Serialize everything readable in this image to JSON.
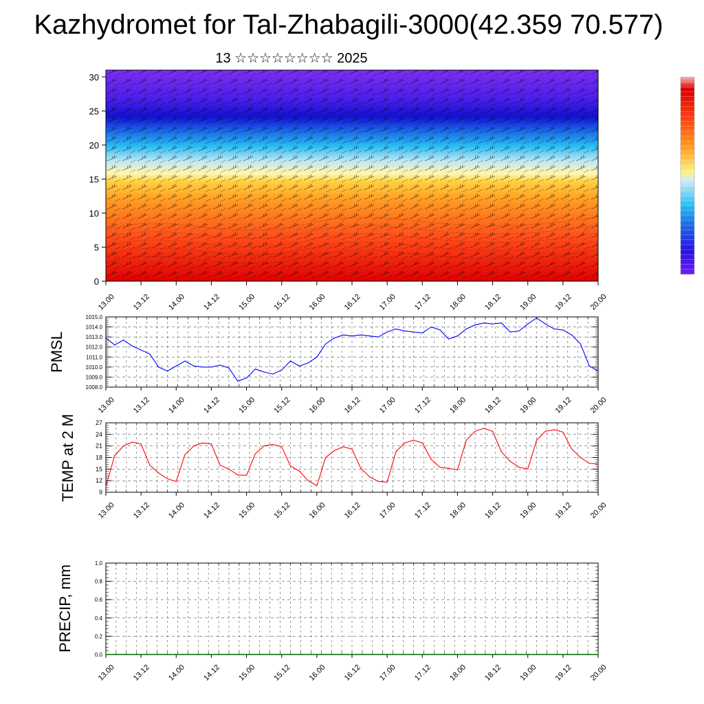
{
  "header": {
    "title": "Kazhydromet for Tal-Zhabagili-3000(42.359 70.577)",
    "subtitle": "13 ☆☆☆☆☆☆☆☆ 2025"
  },
  "chart_data": [
    {
      "type": "heatmap",
      "title": "",
      "xlabel": "",
      "ylabel": "",
      "x_ticks": [
        "13.00",
        "13.12",
        "14.00",
        "14.12",
        "15.00",
        "15.12",
        "16.00",
        "16.12",
        "17.00",
        "17.12",
        "18.00",
        "18.12",
        "19.00",
        "19.12",
        "20.00"
      ],
      "y_ticks": [
        0,
        5,
        10,
        15,
        20,
        25,
        30
      ],
      "ylim": [
        0,
        31
      ],
      "colormap": "rainbow (red at bottom, yellow ~15-16, light blue ~18, blue ~24, violet top)",
      "colorbar_position": "right",
      "overlay": "wind barbs"
    },
    {
      "type": "line",
      "ylabel": "PMSL",
      "color": "#0000ff",
      "ylim": [
        1008.0,
        1015.0
      ],
      "y_ticks": [
        "1008.0",
        "1009.0",
        "1010.0",
        "1011.0",
        "1012.0",
        "1013.0",
        "1014.0",
        "1015.0"
      ],
      "x_ticks": [
        "13.00",
        "13.12",
        "14.00",
        "14.12",
        "15.00",
        "15.12",
        "16.00",
        "16.12",
        "17.00",
        "17.12",
        "18.00",
        "18.12",
        "19.00",
        "19.12",
        "20.00"
      ],
      "x": [
        0,
        3,
        6,
        9,
        12,
        15,
        18,
        21,
        24,
        27,
        30,
        33,
        36,
        39,
        42,
        45,
        48,
        51,
        54,
        57,
        60,
        63,
        66,
        69,
        72,
        75,
        78,
        81,
        84,
        87,
        90,
        93,
        96,
        99,
        102,
        105,
        108,
        111,
        114,
        117,
        120,
        123,
        126,
        129,
        132,
        135,
        138,
        141,
        144,
        147,
        150,
        153,
        156,
        159,
        162,
        165,
        168
      ],
      "values": [
        1012.9,
        1012.2,
        1012.7,
        1012.1,
        1011.7,
        1011.3,
        1010.0,
        1009.6,
        1010.1,
        1010.6,
        1010.1,
        1010.0,
        1010.0,
        1010.2,
        1009.9,
        1008.6,
        1008.9,
        1009.8,
        1009.5,
        1009.3,
        1009.7,
        1010.6,
        1010.1,
        1010.4,
        1011.0,
        1012.3,
        1012.9,
        1013.2,
        1013.1,
        1013.2,
        1013.1,
        1013.0,
        1013.5,
        1013.8,
        1013.6,
        1013.5,
        1013.4,
        1014.0,
        1013.7,
        1012.8,
        1013.1,
        1013.8,
        1014.2,
        1014.4,
        1014.3,
        1014.4,
        1013.5,
        1013.6,
        1014.3,
        1014.9,
        1014.3,
        1013.8,
        1013.7,
        1013.2,
        1012.3,
        1010.1,
        1009.6
      ],
      "grid": true
    },
    {
      "type": "line",
      "ylabel": "TEMP at 2 M",
      "color": "#ff0000",
      "ylim": [
        9,
        27
      ],
      "y_ticks": [
        "9",
        "12",
        "15",
        "18",
        "21",
        "24",
        "27"
      ],
      "x_ticks": [
        "13.00",
        "13.12",
        "14.00",
        "14.12",
        "15.00",
        "15.12",
        "16.00",
        "16.12",
        "17.00",
        "17.12",
        "18.00",
        "18.12",
        "19.00",
        "19.12",
        "20.00"
      ],
      "x": [
        0,
        3,
        6,
        9,
        12,
        15,
        18,
        21,
        24,
        27,
        30,
        33,
        36,
        39,
        42,
        45,
        48,
        51,
        54,
        57,
        60,
        63,
        66,
        69,
        72,
        75,
        78,
        81,
        84,
        87,
        90,
        93,
        96,
        99,
        102,
        105,
        108,
        111,
        114,
        117,
        120,
        123,
        126,
        129,
        132,
        135,
        138,
        141,
        144,
        147,
        150,
        153,
        156,
        159,
        162,
        165,
        168
      ],
      "values": [
        10.5,
        18.5,
        21.0,
        22.0,
        21.5,
        16.0,
        14.0,
        12.5,
        11.8,
        18.8,
        21.0,
        21.8,
        21.5,
        16.0,
        15.0,
        13.5,
        13.4,
        19.0,
        21.0,
        21.4,
        20.8,
        15.8,
        14.5,
        12.0,
        10.7,
        18.0,
        19.8,
        20.8,
        20.2,
        15.2,
        13.0,
        11.8,
        11.6,
        19.5,
        21.8,
        22.5,
        21.8,
        17.5,
        15.5,
        15.2,
        14.8,
        22.5,
        24.8,
        25.6,
        24.8,
        19.5,
        17.0,
        15.5,
        15.0,
        22.5,
        24.8,
        25.2,
        24.6,
        20.2,
        18.0,
        16.5,
        16.3
      ],
      "grid": true
    },
    {
      "type": "bar",
      "ylabel": "PRECIP, mm",
      "ylim": [
        0.0,
        1.0
      ],
      "y_ticks": [
        "0.0",
        "0.2",
        "0.4",
        "0.6",
        "0.8",
        "1.0"
      ],
      "x_ticks": [
        "13.00",
        "13.12",
        "14.00",
        "14.12",
        "15.00",
        "15.12",
        "16.00",
        "16.12",
        "17.00",
        "17.12",
        "18.00",
        "18.12",
        "19.00",
        "19.12",
        "20.00"
      ],
      "values": [],
      "grid": true
    }
  ]
}
